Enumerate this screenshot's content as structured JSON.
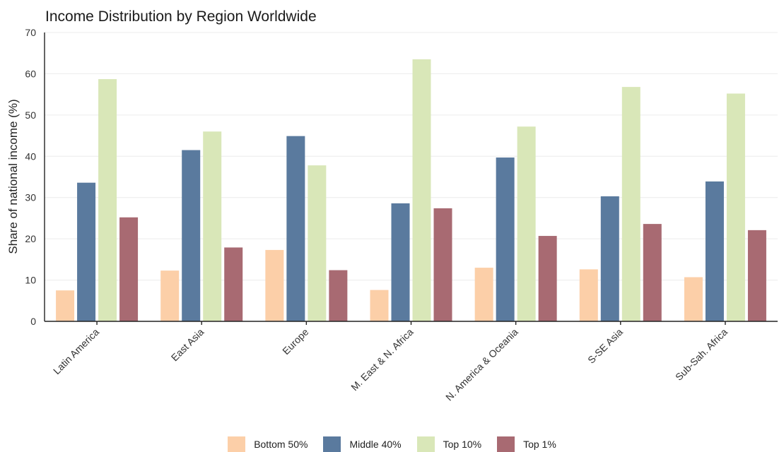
{
  "chart_data": {
    "type": "bar",
    "title": "Income Distribution by Region Worldwide",
    "xlabel": "",
    "ylabel": "Share of national income (%)",
    "ylim": [
      0,
      70
    ],
    "yticks": [
      0,
      10,
      20,
      30,
      40,
      50,
      60,
      70
    ],
    "grid": "horizontal",
    "legend_position": "bottom",
    "categories": [
      "Latin America",
      "East Asia",
      "Europe",
      "M. East & N. Africa",
      "N. America & Oceania",
      "S-SE Asia",
      "Sub-Sah. Africa"
    ],
    "series": [
      {
        "name": "Bottom 50%",
        "color": "#fccfa8",
        "values": [
          7.5,
          12.3,
          17.3,
          7.6,
          13.0,
          12.6,
          10.7
        ]
      },
      {
        "name": "Middle 40%",
        "color": "#5a7a9e",
        "values": [
          33.6,
          41.5,
          44.9,
          28.6,
          39.7,
          30.3,
          33.9
        ]
      },
      {
        "name": "Top 10%",
        "color": "#d9e7b8",
        "values": [
          58.7,
          46.0,
          37.8,
          63.5,
          47.2,
          56.8,
          55.2
        ]
      },
      {
        "name": "Top 1%",
        "color": "#a86a72",
        "values": [
          25.2,
          17.9,
          12.4,
          27.4,
          20.7,
          23.6,
          22.1
        ]
      }
    ]
  }
}
